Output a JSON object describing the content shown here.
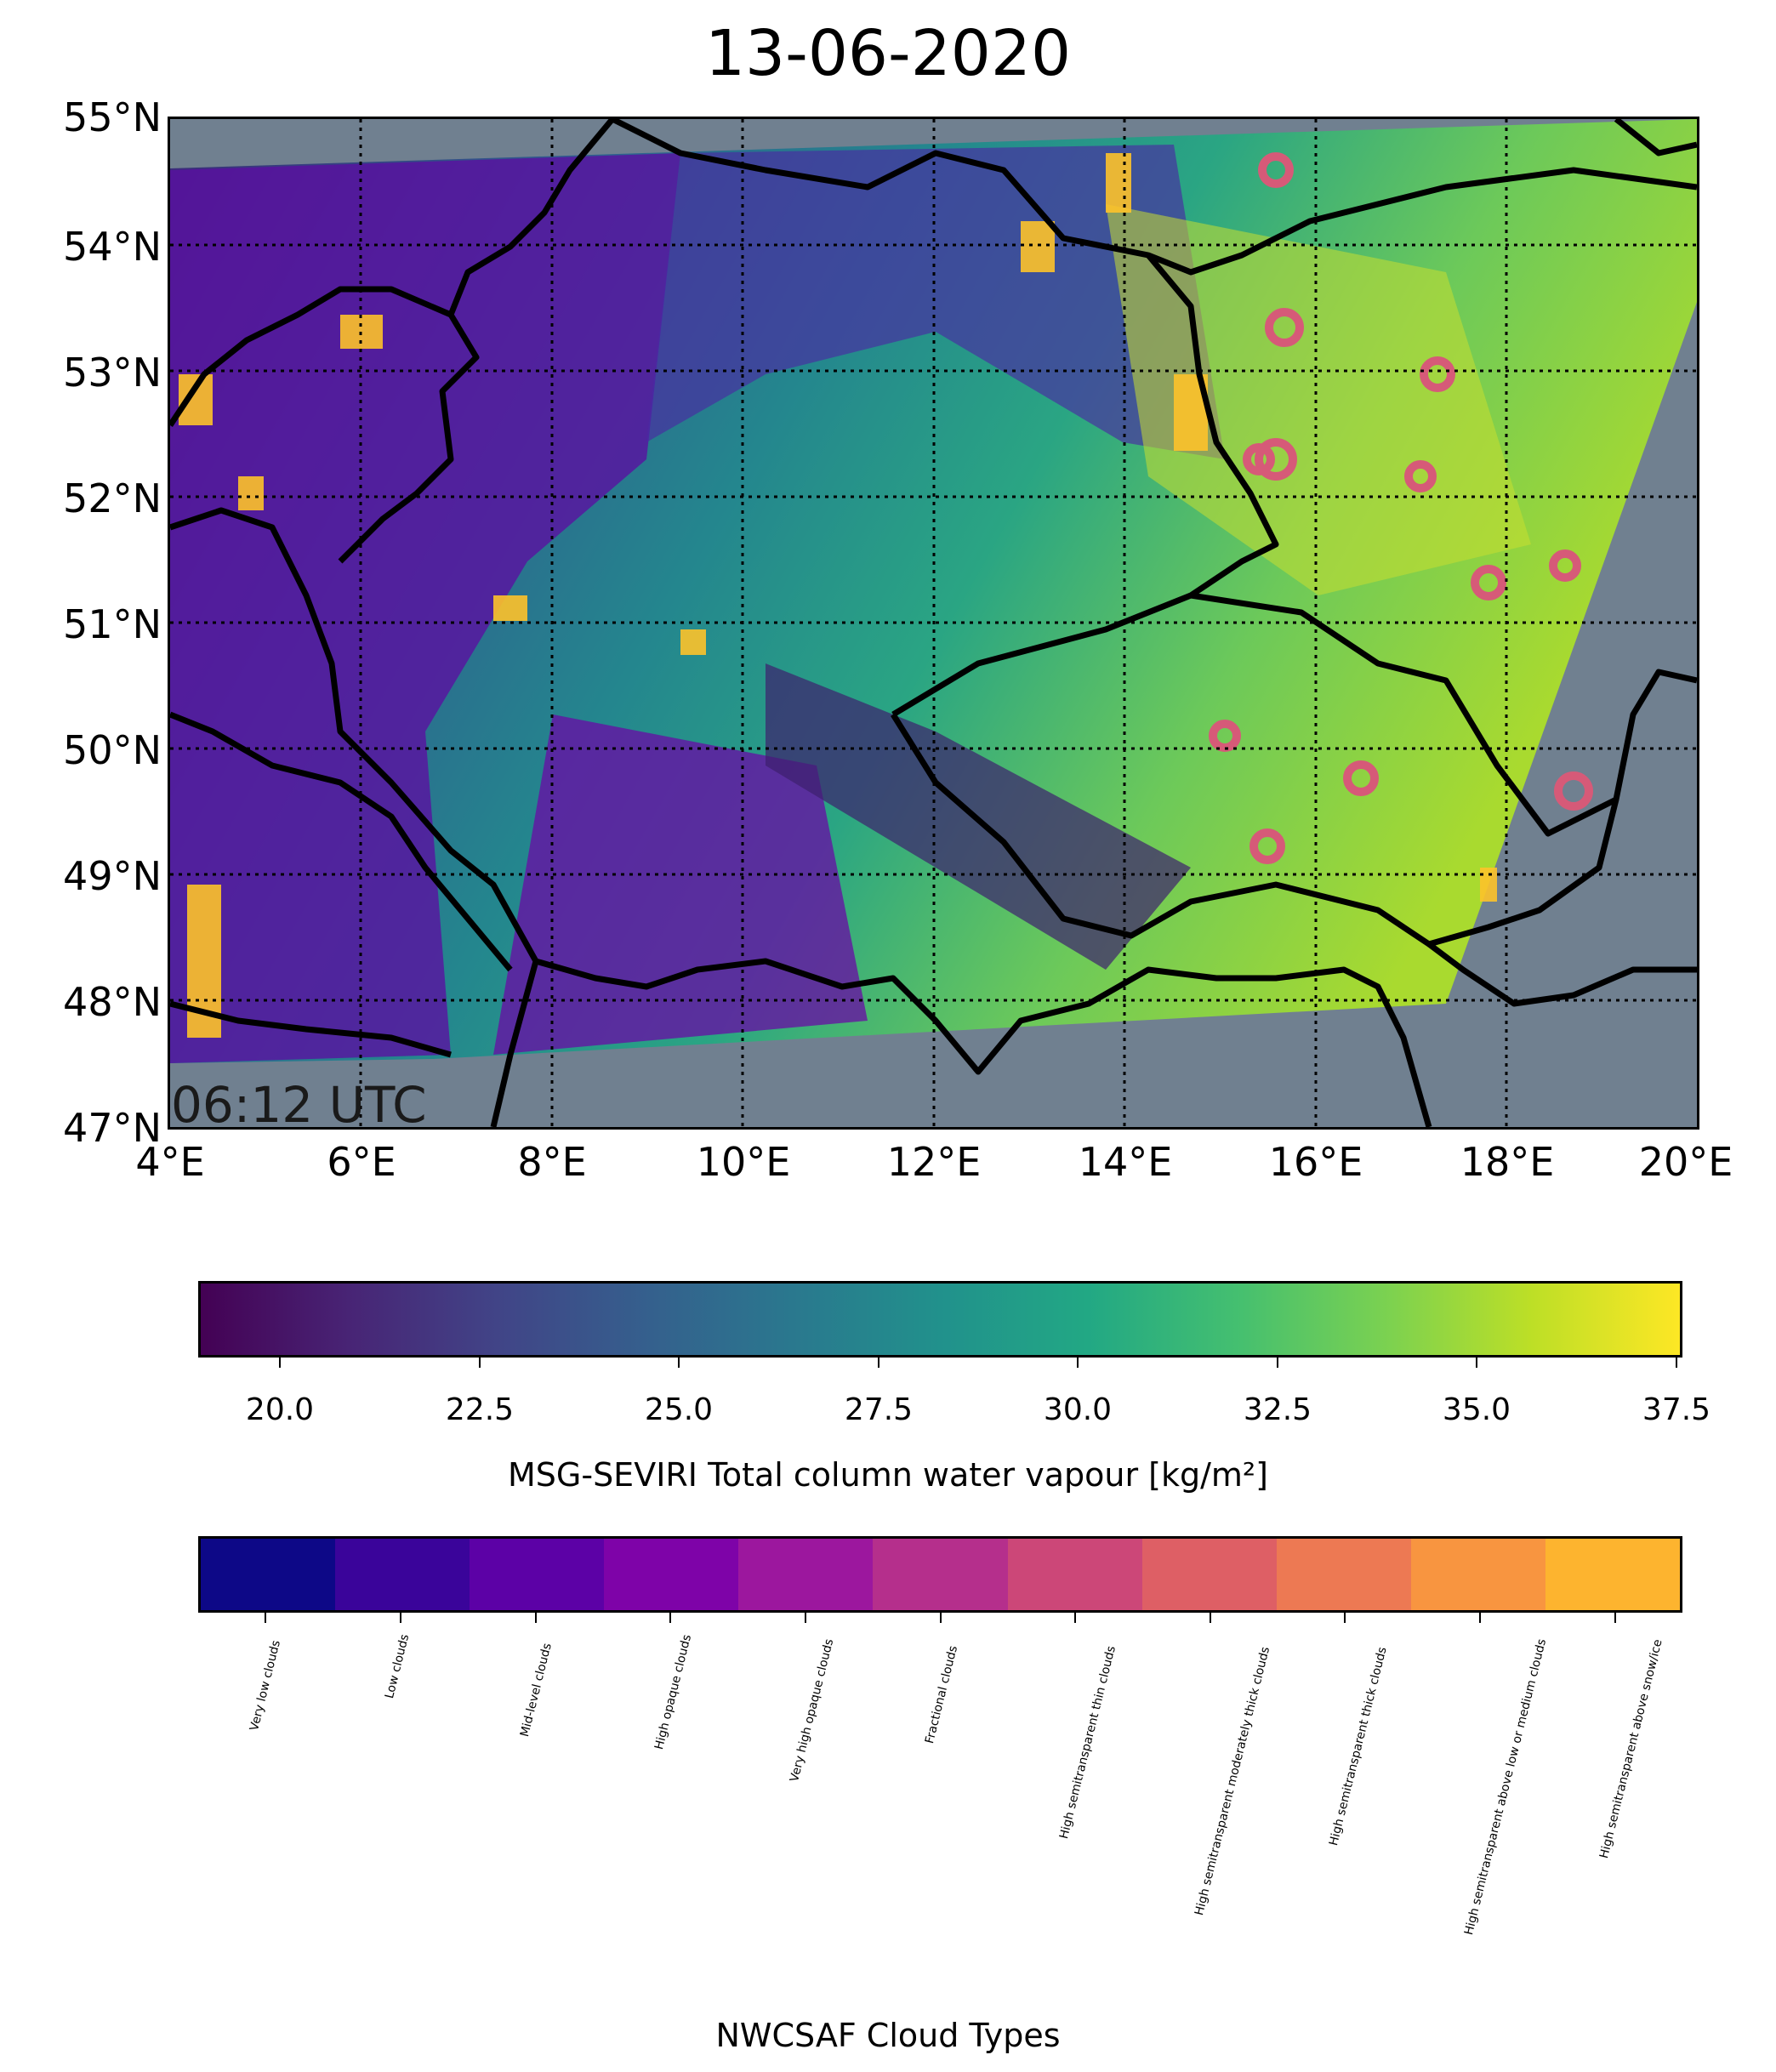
{
  "title": "13-06-2020",
  "timestamp": "06:12 UTC",
  "map": {
    "extent": {
      "lon_min": 4,
      "lon_max": 20,
      "lat_min": 47,
      "lat_max": 55
    },
    "lat_ticks": [
      "47°N",
      "48°N",
      "49°N",
      "50°N",
      "51°N",
      "52°N",
      "53°N",
      "54°N",
      "55°N"
    ],
    "lon_ticks": [
      "4°E",
      "6°E",
      "8°E",
      "10°E",
      "12°E",
      "14°E",
      "16°E",
      "18°E",
      "20°E"
    ],
    "gridlines": "dotted every 2° lon and 1° lat",
    "no_data_color": "#708090",
    "border_color": "#000000"
  },
  "colorbar_wv": {
    "label": "MSG-SEVIRI Total column water vapour [kg/m²]",
    "range": [
      19,
      37.6
    ],
    "ticks": [
      "20.0",
      "22.5",
      "25.0",
      "27.5",
      "30.0",
      "32.5",
      "35.0",
      "37.5"
    ],
    "colormap": "viridis"
  },
  "colorbar_ct": {
    "label": "NWCSAF Cloud Types",
    "classes": [
      {
        "name": "Very low clouds",
        "color": "#0d0887"
      },
      {
        "name": "Low clouds",
        "color": "#3a049a"
      },
      {
        "name": "Mid-level clouds",
        "color": "#5c01a6"
      },
      {
        "name": "High opaque clouds",
        "color": "#7e03a8"
      },
      {
        "name": "Very high opaque clouds",
        "color": "#9c179e"
      },
      {
        "name": "Fractional clouds",
        "color": "#b52f8c"
      },
      {
        "name": "High semitransparent thin clouds",
        "color": "#cc4778"
      },
      {
        "name": "High semitransparent moderately thick clouds",
        "color": "#de5f65"
      },
      {
        "name": "High semitransparent thick clouds",
        "color": "#ed7953"
      },
      {
        "name": "High semitransparent above low or medium clouds",
        "color": "#f89540"
      },
      {
        "name": "High semitransparent above snow/ice",
        "color": "#fdb42f"
      }
    ]
  }
}
